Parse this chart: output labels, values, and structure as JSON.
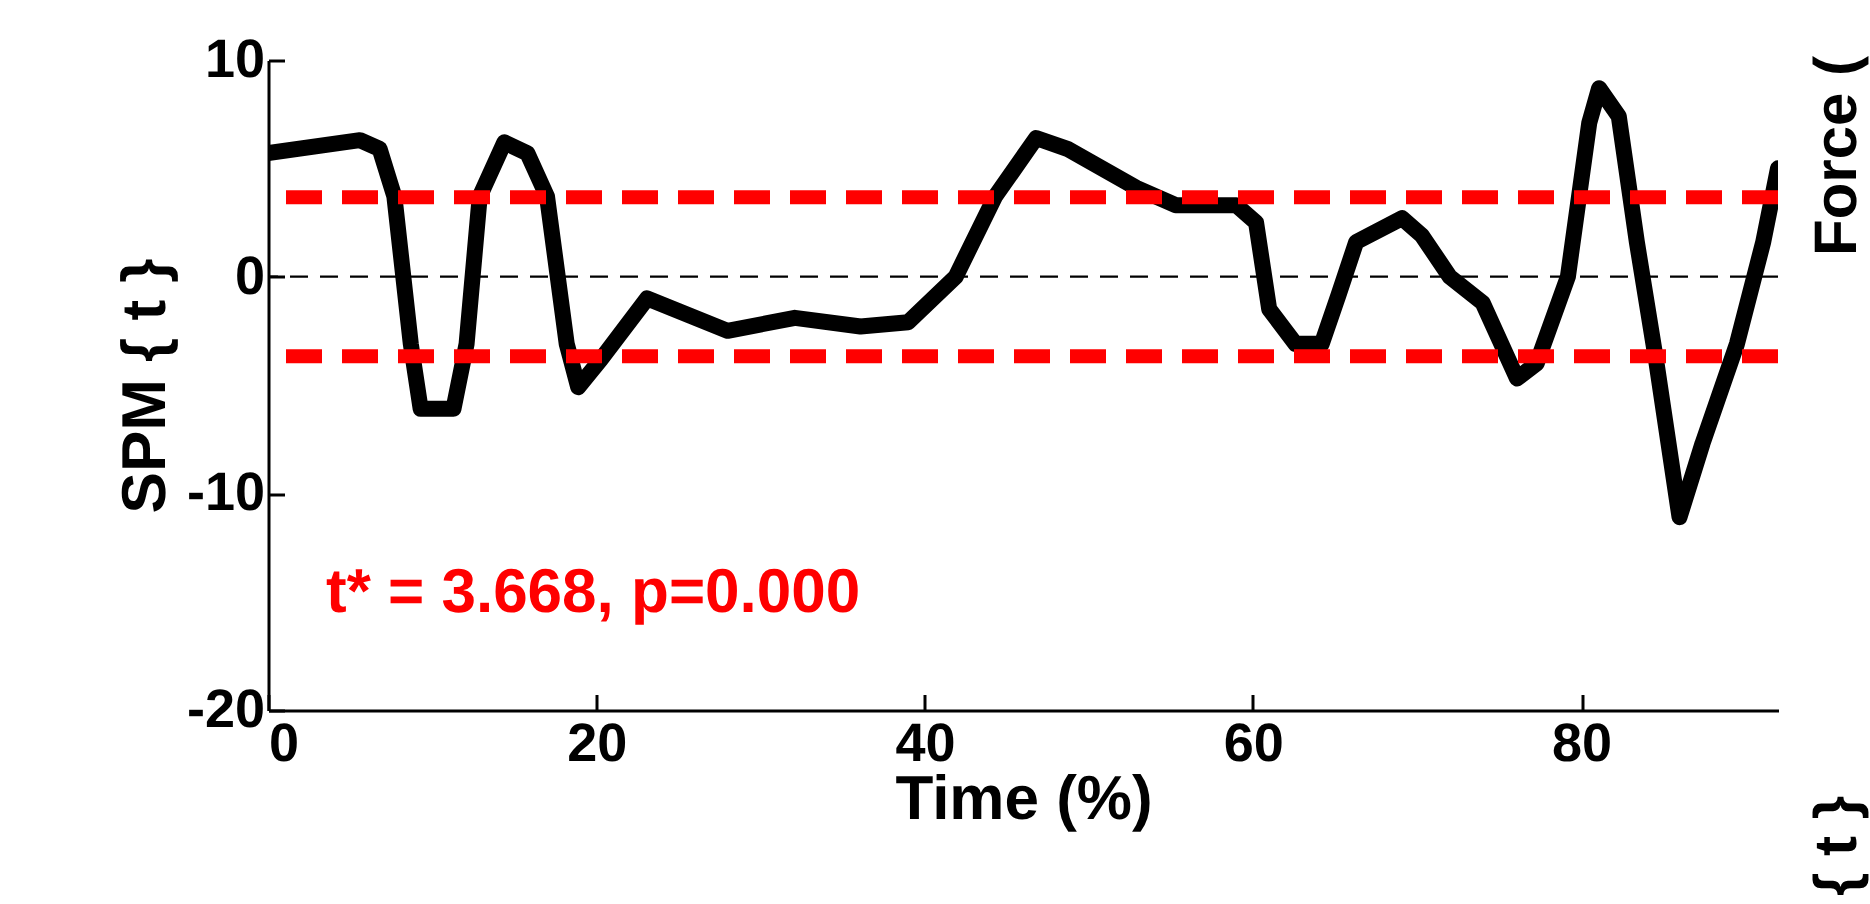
{
  "chart_data": {
    "type": "line",
    "xlabel": "Time (%)",
    "ylabel": "SPM { t }",
    "x": [
      0,
      5.6,
      6.8,
      7.7,
      8.7,
      9.3,
      11.3,
      12.1,
      12.9,
      14.4,
      15.8,
      17.0,
      18.2,
      18.9,
      20.3,
      23.1,
      28.0,
      32.1,
      36.1,
      39,
      41.9,
      44.3,
      46.8,
      48.7,
      52.9,
      55.3,
      59,
      60.2,
      61,
      62.6,
      64.2,
      65.2,
      66.3,
      69.1,
      70.3,
      72,
      74,
      76.1,
      77.3,
      79.2,
      80.5,
      81.1,
      82.3,
      83.4,
      84.6,
      86,
      87.4,
      89.5,
      91.1,
      92
    ],
    "series": [
      {
        "color": "#000000",
        "values": [
          5.7,
          6.3,
          5.9,
          3.7,
          -3.1,
          -6.1,
          -6.1,
          -3.1,
          3.7,
          6.2,
          5.7,
          3.7,
          -3.1,
          -5.1,
          -3.8,
          -1.0,
          -2.5,
          -1.9,
          -2.3,
          -2.1,
          0,
          3.7,
          6.4,
          5.9,
          4.1,
          3.3,
          3.3,
          2.5,
          -1.5,
          -3.1,
          -3.1,
          -0.9,
          1.6,
          2.7,
          1.9,
          0,
          -1.2,
          -4.7,
          -4.0,
          0,
          7.1,
          8.7,
          7.4,
          1.6,
          -4,
          -11.1,
          -7.7,
          -3.1,
          1.6,
          5.0
        ]
      }
    ],
    "xlim": [
      0,
      92
    ],
    "ylim": [
      -20,
      10
    ],
    "xticks": [
      0,
      20,
      40,
      60,
      80
    ],
    "yticks": [
      -20,
      -10,
      0,
      10
    ],
    "grid": false,
    "line_style": "solid",
    "ref_lines": [
      {
        "axis": "y",
        "value": 0,
        "color": "#000000",
        "line_style": "dashed"
      },
      {
        "axis": "y",
        "value": 3.668,
        "color": "#ff0000",
        "line_style": "dashed"
      },
      {
        "axis": "y",
        "value": -3.668,
        "color": "#ff0000",
        "line_style": "dashed"
      }
    ],
    "annotations": [
      "t* = 3.668, p=0.000",
      "Force (",
      "{ t }"
    ]
  }
}
